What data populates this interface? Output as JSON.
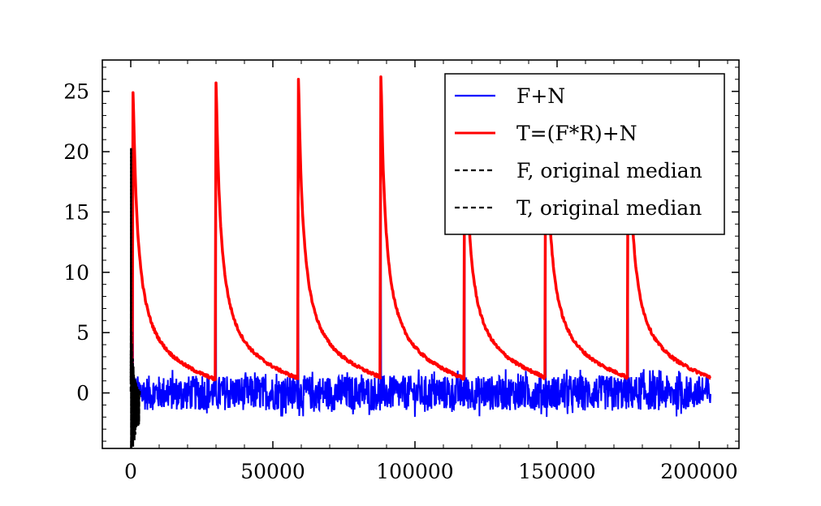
{
  "chart_data": {
    "type": "line",
    "title": "",
    "xlabel": "",
    "ylabel": "",
    "xlim": [
      -10000,
      214000
    ],
    "ylim": [
      -4.6,
      27.6
    ],
    "x_ticks": [
      0,
      50000,
      100000,
      150000,
      200000
    ],
    "x_tick_labels": [
      "0",
      "50000",
      "100000",
      "150000",
      "200000"
    ],
    "y_ticks": [
      0,
      5,
      10,
      15,
      20,
      25
    ],
    "y_tick_labels": [
      "0",
      "5",
      "10",
      "15",
      "20",
      "25"
    ],
    "legend_position": "top-right",
    "legend": [
      {
        "label": "F+N",
        "color": "#0000ff",
        "style": "solid"
      },
      {
        "label": "T=(F*R)+N",
        "color": "#ff0000",
        "style": "solid"
      },
      {
        "label": "F, original median",
        "color": "#000000",
        "style": "dashed"
      },
      {
        "label": "T, original median",
        "color": "#000000",
        "style": "dashed"
      }
    ],
    "series": [
      {
        "name": "F+N",
        "color": "#0000ff",
        "noise_band": [
          -1.6,
          1.6
        ],
        "x_range": [
          0,
          204000
        ],
        "peaks": [
          {
            "x": 800,
            "y": 20.0
          },
          {
            "x": 30000,
            "y": 19.8
          },
          {
            "x": 59000,
            "y": 20.0
          },
          {
            "x": 88000,
            "y": 19.6
          },
          {
            "x": 117500,
            "y": 14.0
          },
          {
            "x": 146000,
            "y": 14.0
          },
          {
            "x": 175000,
            "y": 13.5
          }
        ]
      },
      {
        "name": "T=(F*R)+N",
        "color": "#ff0000",
        "x_range": [
          0,
          204000
        ],
        "peaks": [
          {
            "x": 800,
            "y": 24.9
          },
          {
            "x": 30000,
            "y": 25.7
          },
          {
            "x": 59000,
            "y": 26.0
          },
          {
            "x": 88000,
            "y": 26.2
          },
          {
            "x": 117500,
            "y": 25.0
          },
          {
            "x": 146000,
            "y": 25.0
          },
          {
            "x": 175000,
            "y": 25.0
          }
        ],
        "pre_peak_levels": [
          0.7,
          1.1,
          1.2,
          1.3,
          1.2,
          1.3,
          1.3
        ],
        "end_level": 1.3
      },
      {
        "name": "F, original median",
        "color": "#000000",
        "x_range": [
          0,
          3200
        ],
        "values_range": [
          -3.0,
          20.3
        ]
      },
      {
        "name": "T, original median",
        "color": "#000000",
        "x_range": [
          0,
          3200
        ],
        "values_range": [
          -3.0,
          20.3
        ]
      }
    ]
  }
}
